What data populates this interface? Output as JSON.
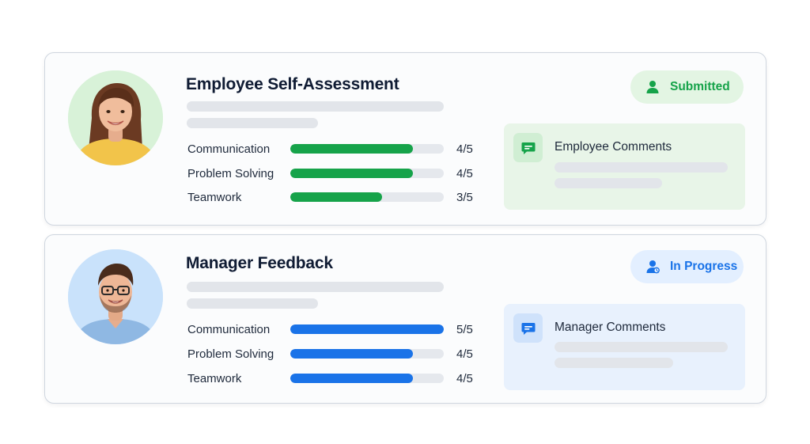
{
  "employee_card": {
    "title": "Employee Self-Assessment",
    "avatar_icon": "employee-avatar-photo",
    "status": {
      "label": "Submitted",
      "icon": "user-icon",
      "color": "#16a34a",
      "bg": "#e3f5e3"
    },
    "accent_color": "#16a34a",
    "ratings": [
      {
        "label": "Communication",
        "value": "4/5",
        "score": 4,
        "max": 5
      },
      {
        "label": "Problem Solving",
        "value": "4/5",
        "score": 4,
        "max": 5
      },
      {
        "label": "Teamwork",
        "value": "3/5",
        "score": 3,
        "max": 5
      }
    ],
    "comments": {
      "title": "Employee Comments",
      "icon": "chat-icon",
      "panel_bg": "#e8f5e8",
      "icon_bg": "#d0eed3"
    }
  },
  "manager_card": {
    "title": "Manager Feedback",
    "avatar_icon": "manager-avatar-photo",
    "status": {
      "label": "In Progress",
      "icon": "user-icon",
      "color": "#1a73e8",
      "bg": "#e3efff"
    },
    "accent_color": "#1a73e8",
    "ratings": [
      {
        "label": "Communication",
        "value": "5/5",
        "score": 5,
        "max": 5
      },
      {
        "label": "Problem Solving",
        "value": "4/5",
        "score": 4,
        "max": 5
      },
      {
        "label": "Teamwork",
        "value": "4/5",
        "score": 4,
        "max": 5
      }
    ],
    "comments": {
      "title": "Manager Comments",
      "icon": "chat-icon",
      "panel_bg": "#e8f1fd",
      "icon_bg": "#cfe2fb"
    }
  }
}
